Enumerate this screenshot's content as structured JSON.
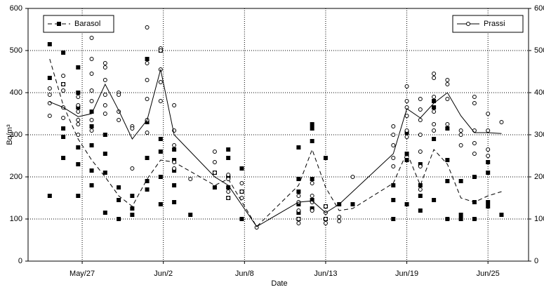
{
  "chart_data": {
    "type": "line_scatter",
    "xlabel": "Date",
    "ylabel": "Bq/m³",
    "xlim": [
      -4,
      33
    ],
    "ylim": [
      0,
      600
    ],
    "y2lim": [
      0,
      600
    ],
    "xticks": [
      {
        "value": 0,
        "label": "May/27"
      },
      {
        "value": 6,
        "label": "Jun/2"
      },
      {
        "value": 12,
        "label": "Jun/8"
      },
      {
        "value": 18,
        "label": "Jun/13"
      },
      {
        "value": 24,
        "label": "Jun/19"
      },
      {
        "value": 30,
        "label": "Jun/25"
      }
    ],
    "yticks": [
      0,
      100,
      200,
      300,
      400,
      500,
      600
    ],
    "y2ticks": [
      0,
      100,
      200,
      300,
      400,
      500,
      600
    ],
    "grid": true,
    "series": [
      {
        "name": "Barasol",
        "color": "#000000",
        "dashed": true,
        "marker": "square",
        "legend": "top-left",
        "x": [
          -2.4,
          -1.4,
          -0.3,
          0.7,
          1.7,
          2.7,
          3.7,
          4.8,
          5.8,
          6.8,
          9.8,
          10.8,
          12.9,
          16,
          17,
          18,
          19,
          20,
          23,
          24,
          25,
          26,
          27,
          28,
          29,
          30,
          31
        ],
        "values": [
          480,
          370,
          290,
          240,
          200,
          155,
          130,
          195,
          240,
          235,
          180,
          195,
          82,
          180,
          265,
          175,
          120,
          125,
          185,
          258,
          180,
          265,
          230,
          150,
          140,
          155,
          165
        ],
        "point_groups": [
          {
            "x": -2.4,
            "values": [
              515,
              435,
              155
            ]
          },
          {
            "x": -1.4,
            "values": [
              495,
              420,
              315,
              295,
              245
            ]
          },
          {
            "x": -0.3,
            "values": [
              460,
              400,
              365,
              270,
              230,
              155
            ]
          },
          {
            "x": 0.7,
            "values": [
              355,
              320,
              275,
              215,
              180
            ]
          },
          {
            "x": 1.7,
            "values": [
              300,
              255,
              210,
              115
            ]
          },
          {
            "x": 2.7,
            "values": [
              175,
              145,
              100
            ]
          },
          {
            "x": 3.7,
            "values": [
              155,
              125,
              110
            ]
          },
          {
            "x": 4.8,
            "values": [
              480,
              330,
              245,
              190,
              170
            ]
          },
          {
            "x": 5.8,
            "values": [
              500,
              290,
              260,
              200,
              135
            ]
          },
          {
            "x": 6.8,
            "values": [
              265,
              240,
              215,
              180,
              140
            ]
          },
          {
            "x": 8,
            "values": [
              110
            ]
          },
          {
            "x": 9.8,
            "values": [
              210,
              175
            ]
          },
          {
            "x": 10.8,
            "values": [
              265,
              245,
              200,
              175,
              150
            ]
          },
          {
            "x": 11.8,
            "values": [
              220,
              165,
              100
            ]
          },
          {
            "x": 16,
            "values": [
              270,
              195,
              165,
              135,
              115,
              100
            ]
          },
          {
            "x": 17,
            "values": [
              325,
              315,
              285,
              195,
              145,
              125
            ]
          },
          {
            "x": 18,
            "values": [
              245,
              130,
              100
            ]
          },
          {
            "x": 19,
            "values": [
              135
            ]
          },
          {
            "x": 20,
            "values": [
              135
            ]
          },
          {
            "x": 23,
            "values": [
              180,
              145,
              100
            ]
          },
          {
            "x": 24,
            "values": [
              305,
              255,
              240,
              135
            ]
          },
          {
            "x": 25,
            "values": [
              230,
              180,
              155,
              120
            ]
          },
          {
            "x": 26,
            "values": [
              380,
              365,
              290,
              145
            ]
          },
          {
            "x": 27,
            "values": [
              315,
              240,
              190,
              100
            ]
          },
          {
            "x": 28,
            "values": [
              190,
              110,
              100
            ]
          },
          {
            "x": 29,
            "values": [
              200,
              140,
              100
            ]
          },
          {
            "x": 30,
            "values": [
              235,
              210,
              140,
              130
            ]
          },
          {
            "x": 31,
            "values": [
              110
            ]
          }
        ]
      },
      {
        "name": "Prassi",
        "color": "#000000",
        "dashed": false,
        "marker": "circle",
        "legend": "top-right",
        "x": [
          -2.4,
          -1.4,
          -0.3,
          0.7,
          1.7,
          2.7,
          3.7,
          4.8,
          5.8,
          6.8,
          9.8,
          10.8,
          12.9,
          16,
          17,
          18,
          19,
          23,
          24,
          25,
          26,
          27,
          28,
          29,
          30,
          31
        ],
        "values": [
          378,
          365,
          343,
          350,
          420,
          358,
          290,
          335,
          455,
          300,
          200,
          180,
          82,
          140,
          143,
          115,
          135,
          255,
          362,
          340,
          375,
          400,
          345,
          305,
          305,
          303
        ],
        "point_groups": [
          {
            "x": -2.4,
            "values": [
              410,
              395,
              375,
              345
            ]
          },
          {
            "x": -1.4,
            "values": [
              440,
              420,
              405,
              365,
              340
            ]
          },
          {
            "x": -0.3,
            "values": [
              390,
              370,
              355,
              335,
              325,
              300
            ]
          },
          {
            "x": 0.7,
            "values": [
              530,
              480,
              445,
              405,
              380,
              335,
              310
            ]
          },
          {
            "x": 1.7,
            "values": [
              470,
              460,
              430,
              395,
              370,
              350
            ]
          },
          {
            "x": 2.7,
            "values": [
              400,
              395,
              355,
              335
            ]
          },
          {
            "x": 3.7,
            "values": [
              320,
              315,
              220
            ]
          },
          {
            "x": 4.8,
            "values": [
              555,
              470,
              430,
              385,
              335,
              305
            ]
          },
          {
            "x": 5.8,
            "values": [
              505,
              500,
              455,
              425,
              380
            ]
          },
          {
            "x": 6.8,
            "values": [
              370,
              310,
              275,
              235,
              220
            ]
          },
          {
            "x": 8,
            "values": [
              195
            ]
          },
          {
            "x": 9.8,
            "values": [
              260,
              235,
              210
            ]
          },
          {
            "x": 10.8,
            "values": [
              205,
              195,
              165,
              150
            ]
          },
          {
            "x": 11.8,
            "values": [
              185,
              165,
              150
            ]
          },
          {
            "x": 12.9,
            "values": [
              80
            ]
          },
          {
            "x": 16,
            "values": [
              155,
              140,
              120,
              100,
              90
            ]
          },
          {
            "x": 17,
            "values": [
              185,
              155,
              140,
              120
            ]
          },
          {
            "x": 18,
            "values": [
              130,
              115,
              100,
              90
            ]
          },
          {
            "x": 19,
            "values": [
              95,
              105
            ]
          },
          {
            "x": 20,
            "values": [
              200
            ]
          },
          {
            "x": 23,
            "values": [
              320,
              300,
              275,
              245,
              225
            ]
          },
          {
            "x": 24,
            "values": [
              415,
              380,
              365,
              345,
              310,
              295
            ]
          },
          {
            "x": 25,
            "values": [
              385,
              360,
              335,
              300,
              260,
              225,
              170
            ]
          },
          {
            "x": 26,
            "values": [
              445,
              435,
              390,
              355,
              325,
              310
            ]
          },
          {
            "x": 27,
            "values": [
              430,
              420,
              385,
              325
            ]
          },
          {
            "x": 28,
            "values": [
              310,
              300,
              275
            ]
          },
          {
            "x": 29,
            "values": [
              390,
              375,
              310,
              280,
              255
            ]
          },
          {
            "x": 30,
            "values": [
              350,
              310,
              265,
              250
            ]
          },
          {
            "x": 31,
            "values": [
              330
            ]
          }
        ]
      }
    ]
  }
}
